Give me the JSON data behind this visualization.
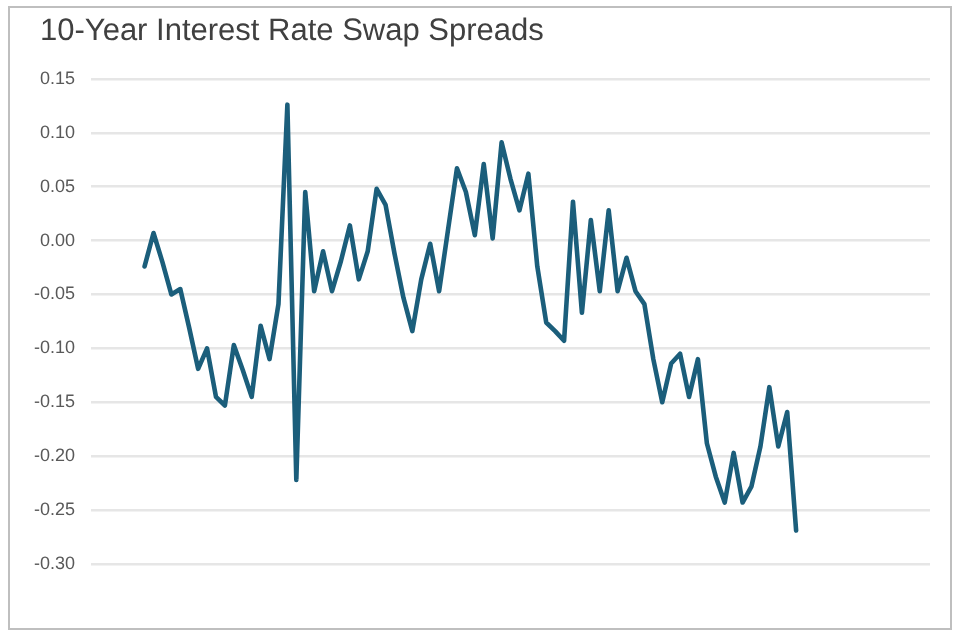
{
  "chart_data": {
    "type": "line",
    "title": "10-Year Interest Rate Swap Spreads",
    "categories": [
      null,
      null,
      null,
      null,
      null,
      null,
      null,
      null,
      null,
      null,
      null,
      null,
      null,
      null,
      null,
      null,
      null,
      null,
      null,
      null,
      null,
      null,
      null,
      null,
      null,
      null,
      null,
      null,
      null,
      null,
      null,
      null,
      null,
      null,
      null,
      null,
      null,
      null,
      null,
      null,
      null,
      null,
      null,
      null,
      null,
      null,
      null,
      null,
      null,
      null,
      null,
      null,
      null,
      null,
      null,
      null,
      null,
      null,
      null,
      null,
      null,
      null,
      null,
      null,
      null,
      null,
      null,
      null,
      null,
      null,
      null,
      null,
      null,
      null,
      null,
      null,
      null,
      null,
      null,
      null,
      null,
      null,
      null,
      null,
      null,
      null,
      null,
      null,
      null,
      null,
      null,
      null,
      null,
      null,
      null
    ],
    "series": [
      {
        "color": "#1b5e7b",
        "values": [
          null,
          null,
          null,
          null,
          null,
          null,
          -0.024,
          0.007,
          -0.02,
          -0.05,
          -0.045,
          -0.081,
          -0.119,
          -0.1,
          -0.145,
          -0.153,
          -0.097,
          -0.12,
          -0.145,
          -0.079,
          -0.11,
          -0.059,
          0.126,
          -0.222,
          0.045,
          -0.047,
          -0.01,
          -0.047,
          -0.019,
          0.014,
          -0.036,
          -0.01,
          0.048,
          0.033,
          -0.012,
          -0.053,
          -0.084,
          -0.036,
          -0.003,
          -0.047,
          0.01,
          0.067,
          0.045,
          0.005,
          0.071,
          0.002,
          0.091,
          0.057,
          0.028,
          0.062,
          -0.024,
          -0.076,
          -0.084,
          -0.093,
          0.036,
          -0.067,
          0.019,
          -0.047,
          0.028,
          -0.047,
          -0.016,
          -0.047,
          -0.059,
          -0.11,
          -0.15,
          -0.114,
          -0.105,
          -0.145,
          -0.11,
          -0.188,
          -0.219,
          -0.243,
          -0.197,
          -0.243,
          -0.228,
          -0.191,
          -0.136,
          -0.191,
          -0.159,
          -0.269,
          null,
          null,
          null,
          null,
          null,
          null,
          null,
          null,
          null,
          null,
          null,
          null,
          null,
          null,
          null
        ]
      }
    ],
    "ylim": [
      -0.3,
      0.15
    ],
    "yticks": [
      {
        "value": 0.15,
        "label": "0.15"
      },
      {
        "value": 0.1,
        "label": "0.10"
      },
      {
        "value": 0.05,
        "label": "0.05"
      },
      {
        "value": 0,
        "label": "0.00"
      },
      {
        "value": -0.05,
        "label": "-0.05"
      },
      {
        "value": -0.1,
        "label": "-0.10"
      },
      {
        "value": -0.15,
        "label": "-0.15"
      },
      {
        "value": -0.2,
        "label": "-0.20"
      },
      {
        "value": -0.25,
        "label": "-0.25"
      },
      {
        "value": -0.3,
        "label": "-0.30"
      }
    ],
    "grid": "y",
    "marker": "none",
    "line_style": "solid"
  }
}
